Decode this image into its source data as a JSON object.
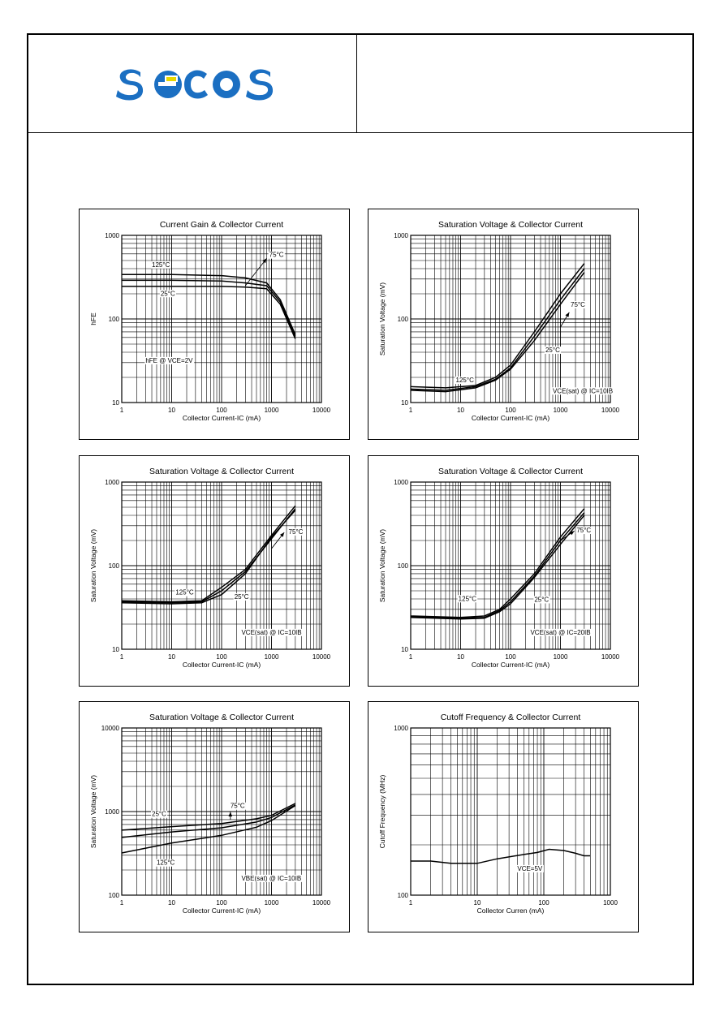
{
  "logo_text": "SECOS",
  "charts": [
    {
      "id": "c1",
      "type": "line",
      "title": "Current Gain & Collector Current",
      "xlabel": "Collector Current-IC (mA)",
      "ylabel": "hFE",
      "xscale": "log",
      "yscale": "log",
      "xlim": [
        1,
        10000
      ],
      "ylim": [
        10,
        1000
      ],
      "xticks": [
        {
          "v": 1,
          "label": "1"
        },
        {
          "v": 10,
          "label": "10"
        },
        {
          "v": 100,
          "label": "100"
        },
        {
          "v": 1000,
          "label": "1000"
        },
        {
          "v": 10000,
          "label": "10000"
        }
      ],
      "yticks": [
        {
          "v": 10,
          "label": "10"
        },
        {
          "v": 100,
          "label": "100"
        },
        {
          "v": 1000,
          "label": "1000"
        }
      ],
      "grid": true,
      "series": [
        {
          "name": "125°C",
          "points": [
            [
              1,
              340
            ],
            [
              10,
              340
            ],
            [
              100,
              330
            ],
            [
              300,
              310
            ],
            [
              800,
              270
            ],
            [
              1500,
              170
            ],
            [
              3000,
              65
            ]
          ]
        },
        {
          "name": "75°C",
          "points": [
            [
              1,
              290
            ],
            [
              10,
              290
            ],
            [
              100,
              285
            ],
            [
              300,
              270
            ],
            [
              800,
              250
            ],
            [
              1500,
              160
            ],
            [
              3000,
              62
            ]
          ]
        },
        {
          "name": "25°C",
          "points": [
            [
              1,
              245
            ],
            [
              10,
              245
            ],
            [
              100,
              245
            ],
            [
              300,
              240
            ],
            [
              800,
              230
            ],
            [
              1500,
              150
            ],
            [
              3000,
              58
            ]
          ]
        }
      ],
      "annotations": [
        {
          "text": "125°C",
          "x": 4,
          "y": 420
        },
        {
          "text": "75°C",
          "x": 900,
          "y": 550
        },
        {
          "text": "25°C",
          "x": 6,
          "y": 190
        },
        {
          "text": "hFE @ VCE=2V",
          "x": 3,
          "y": 30
        }
      ],
      "arrows": [
        [
          [
            300,
            250
          ],
          [
            800,
            530
          ]
        ]
      ]
    },
    {
      "id": "c2",
      "type": "line",
      "title": "Saturation Voltage & Collector Current",
      "xlabel": "Collector Current-IC (mA)",
      "ylabel": "Saturation Voltage (mV)",
      "xscale": "log",
      "yscale": "log",
      "xlim": [
        1,
        10000
      ],
      "ylim": [
        10,
        1000
      ],
      "xticks": [
        {
          "v": 1,
          "label": "1"
        },
        {
          "v": 10,
          "label": "10"
        },
        {
          "v": 100,
          "label": "100"
        },
        {
          "v": 1000,
          "label": "1000"
        },
        {
          "v": 10000,
          "label": "10000"
        }
      ],
      "yticks": [
        {
          "v": 10,
          "label": "10"
        },
        {
          "v": 100,
          "label": "100"
        },
        {
          "v": 1000,
          "label": "1000"
        }
      ],
      "grid": true,
      "series": [
        {
          "name": "125°C",
          "points": [
            [
              1,
              15.5
            ],
            [
              5,
              15
            ],
            [
              20,
              16
            ],
            [
              50,
              20
            ],
            [
              100,
              28
            ],
            [
              300,
              70
            ],
            [
              1000,
              200
            ],
            [
              3000,
              460
            ]
          ]
        },
        {
          "name": "75°C",
          "points": [
            [
              1,
              14.5
            ],
            [
              5,
              14
            ],
            [
              20,
              15.5
            ],
            [
              50,
              19
            ],
            [
              100,
              26
            ],
            [
              300,
              62
            ],
            [
              1000,
              170
            ],
            [
              3000,
              400
            ]
          ]
        },
        {
          "name": "25°C",
          "points": [
            [
              1,
              14
            ],
            [
              5,
              13.5
            ],
            [
              20,
              15
            ],
            [
              50,
              18.5
            ],
            [
              100,
              25
            ],
            [
              300,
              55
            ],
            [
              1000,
              150
            ],
            [
              3000,
              360
            ]
          ]
        }
      ],
      "annotations": [
        {
          "text": "125°C",
          "x": 8,
          "y": 17.5
        },
        {
          "text": "75°C",
          "x": 1600,
          "y": 140
        },
        {
          "text": "25°C",
          "x": 500,
          "y": 40
        },
        {
          "text": "VCE(sat) @ IC=10IB",
          "x": 700,
          "y": 13
        }
      ],
      "arrows": [
        [
          [
            1000,
            80
          ],
          [
            1500,
            120
          ]
        ]
      ]
    },
    {
      "id": "c3",
      "type": "line",
      "title": "Saturation Voltage & Collector Current",
      "xlabel": "Collector Current-IC (mA)",
      "ylabel": "Saturation Voltage (mV)",
      "xscale": "log",
      "yscale": "log",
      "xlim": [
        1,
        10000
      ],
      "ylim": [
        10,
        1000
      ],
      "xticks": [
        {
          "v": 1,
          "label": "1"
        },
        {
          "v": 10,
          "label": "10"
        },
        {
          "v": 100,
          "label": "100"
        },
        {
          "v": 1000,
          "label": "1000"
        },
        {
          "v": 10000,
          "label": "10000"
        }
      ],
      "yticks": [
        {
          "v": 10,
          "label": "10"
        },
        {
          "v": 100,
          "label": "100"
        },
        {
          "v": 1000,
          "label": "1000"
        }
      ],
      "grid": true,
      "series": [
        {
          "name": "125°C",
          "points": [
            [
              1,
              38
            ],
            [
              10,
              37
            ],
            [
              40,
              38
            ],
            [
              100,
              55
            ],
            [
              300,
              90
            ],
            [
              1000,
              230
            ],
            [
              3000,
              520
            ]
          ]
        },
        {
          "name": "75°C",
          "points": [
            [
              1,
              37
            ],
            [
              10,
              36
            ],
            [
              40,
              37
            ],
            [
              100,
              50
            ],
            [
              300,
              85
            ],
            [
              1000,
              210
            ],
            [
              3000,
              480
            ]
          ]
        },
        {
          "name": "25°C",
          "points": [
            [
              1,
              36
            ],
            [
              10,
              35
            ],
            [
              40,
              36
            ],
            [
              100,
              45
            ],
            [
              300,
              80
            ],
            [
              1000,
              220
            ],
            [
              3000,
              460
            ]
          ]
        }
      ],
      "annotations": [
        {
          "text": "125°C",
          "x": 12,
          "y": 45
        },
        {
          "text": "75°C",
          "x": 2200,
          "y": 240
        },
        {
          "text": "25°C",
          "x": 180,
          "y": 40
        },
        {
          "text": "VCE(sat) @ IC=10IB",
          "x": 250,
          "y": 15
        }
      ],
      "arrows": [
        [
          [
            1000,
            160
          ],
          [
            1800,
            250
          ]
        ]
      ]
    },
    {
      "id": "c4",
      "type": "line",
      "title": "Saturation Voltage & Collector Current",
      "xlabel": "Collector Current-IC (mA)",
      "ylabel": "Saturation Voltage (mV)",
      "xscale": "log",
      "yscale": "log",
      "xlim": [
        1,
        10000
      ],
      "ylim": [
        10,
        1000
      ],
      "xticks": [
        {
          "v": 1,
          "label": "1"
        },
        {
          "v": 10,
          "label": "10"
        },
        {
          "v": 100,
          "label": "100"
        },
        {
          "v": 1000,
          "label": "1000"
        },
        {
          "v": 10000,
          "label": "10000"
        }
      ],
      "yticks": [
        {
          "v": 10,
          "label": "10"
        },
        {
          "v": 100,
          "label": "100"
        },
        {
          "v": 1000,
          "label": "1000"
        }
      ],
      "grid": true,
      "series": [
        {
          "name": "125°C",
          "points": [
            [
              1,
              25
            ],
            [
              10,
              24
            ],
            [
              30,
              25
            ],
            [
              60,
              30
            ],
            [
              100,
              40
            ],
            [
              300,
              80
            ],
            [
              1000,
              220
            ],
            [
              3000,
              480
            ]
          ]
        },
        {
          "name": "75°C",
          "points": [
            [
              1,
              24.5
            ],
            [
              10,
              23.5
            ],
            [
              30,
              24
            ],
            [
              60,
              29
            ],
            [
              100,
              37
            ],
            [
              300,
              75
            ],
            [
              1000,
              200
            ],
            [
              3000,
              430
            ]
          ]
        },
        {
          "name": "25°C",
          "points": [
            [
              1,
              24
            ],
            [
              10,
              23
            ],
            [
              30,
              23.5
            ],
            [
              60,
              28
            ],
            [
              100,
              35
            ],
            [
              300,
              72
            ],
            [
              1000,
              180
            ],
            [
              3000,
              400
            ]
          ]
        }
      ],
      "annotations": [
        {
          "text": "125°C",
          "x": 9,
          "y": 38
        },
        {
          "text": "75°C",
          "x": 2100,
          "y": 250
        },
        {
          "text": "25°C",
          "x": 300,
          "y": 37
        },
        {
          "text": "VCE(sat) @ IC=20IB",
          "x": 250,
          "y": 15
        }
      ],
      "arrows": [
        [
          [
            1000,
            200
          ],
          [
            1900,
            260
          ]
        ]
      ]
    },
    {
      "id": "c5",
      "type": "line",
      "title": "Saturation Voltage & Collector Current",
      "xlabel": "Collector Current-IC (mA)",
      "ylabel": "Saturation Voltage (mV)",
      "xscale": "log",
      "yscale": "log",
      "xlim": [
        1,
        10000
      ],
      "ylim": [
        100,
        10000
      ],
      "xticks": [
        {
          "v": 1,
          "label": "1"
        },
        {
          "v": 10,
          "label": "10"
        },
        {
          "v": 100,
          "label": "100"
        },
        {
          "v": 1000,
          "label": "1000"
        },
        {
          "v": 10000,
          "label": "10000"
        }
      ],
      "yticks": [
        {
          "v": 100,
          "label": "100"
        },
        {
          "v": 1000,
          "label": "1000"
        },
        {
          "v": 10000,
          "label": "10000"
        }
      ],
      "grid": true,
      "series": [
        {
          "name": "25°C",
          "points": [
            [
              1,
              600
            ],
            [
              10,
              660
            ],
            [
              100,
              720
            ],
            [
              500,
              820
            ],
            [
              1000,
              900
            ],
            [
              3000,
              1250
            ]
          ]
        },
        {
          "name": "75°C",
          "points": [
            [
              1,
              490
            ],
            [
              10,
              570
            ],
            [
              100,
              640
            ],
            [
              500,
              750
            ],
            [
              1000,
              850
            ],
            [
              3000,
              1200
            ]
          ]
        },
        {
          "name": "125°C",
          "points": [
            [
              1,
              320
            ],
            [
              10,
              420
            ],
            [
              100,
              520
            ],
            [
              500,
              650
            ],
            [
              1000,
              780
            ],
            [
              3000,
              1180
            ]
          ]
        }
      ],
      "annotations": [
        {
          "text": "25°C",
          "x": 4,
          "y": 880
        },
        {
          "text": "75°C",
          "x": 150,
          "y": 1100
        },
        {
          "text": "125°C",
          "x": 5,
          "y": 230
        },
        {
          "text": "VBE(sat) @ IC=10IB",
          "x": 250,
          "y": 150
        }
      ],
      "arrows": [
        [
          [
            150,
            800
          ],
          [
            150,
            990
          ]
        ]
      ]
    },
    {
      "id": "c6",
      "type": "line",
      "title": "Cutoff Frequency & Collector Current",
      "xlabel": "Collector Curren (mA)",
      "ylabel": "Cutoff Frequency (MHz)",
      "xscale": "log",
      "yscale": "log",
      "xlim": [
        1,
        1000
      ],
      "ylim": [
        100,
        1000
      ],
      "xticks": [
        {
          "v": 1,
          "label": "1"
        },
        {
          "v": 10,
          "label": "10"
        },
        {
          "v": 100,
          "label": "100"
        },
        {
          "v": 1000,
          "label": "1000"
        }
      ],
      "yticks": [
        {
          "v": 100,
          "label": "100"
        },
        {
          "v": 1000,
          "label": "1000"
        }
      ],
      "grid": true,
      "series": [
        {
          "name": "",
          "points": [
            [
              1,
              160
            ],
            [
              2,
              160
            ],
            [
              4,
              155
            ],
            [
              10,
              155
            ],
            [
              20,
              165
            ],
            [
              50,
              175
            ],
            [
              80,
              180
            ],
            [
              120,
              188
            ],
            [
              200,
              185
            ],
            [
              300,
              178
            ],
            [
              400,
              172
            ],
            [
              500,
              172
            ]
          ]
        }
      ],
      "annotations": [
        {
          "text": "VCE=5V",
          "x": 40,
          "y": 140
        }
      ],
      "arrows": []
    }
  ]
}
